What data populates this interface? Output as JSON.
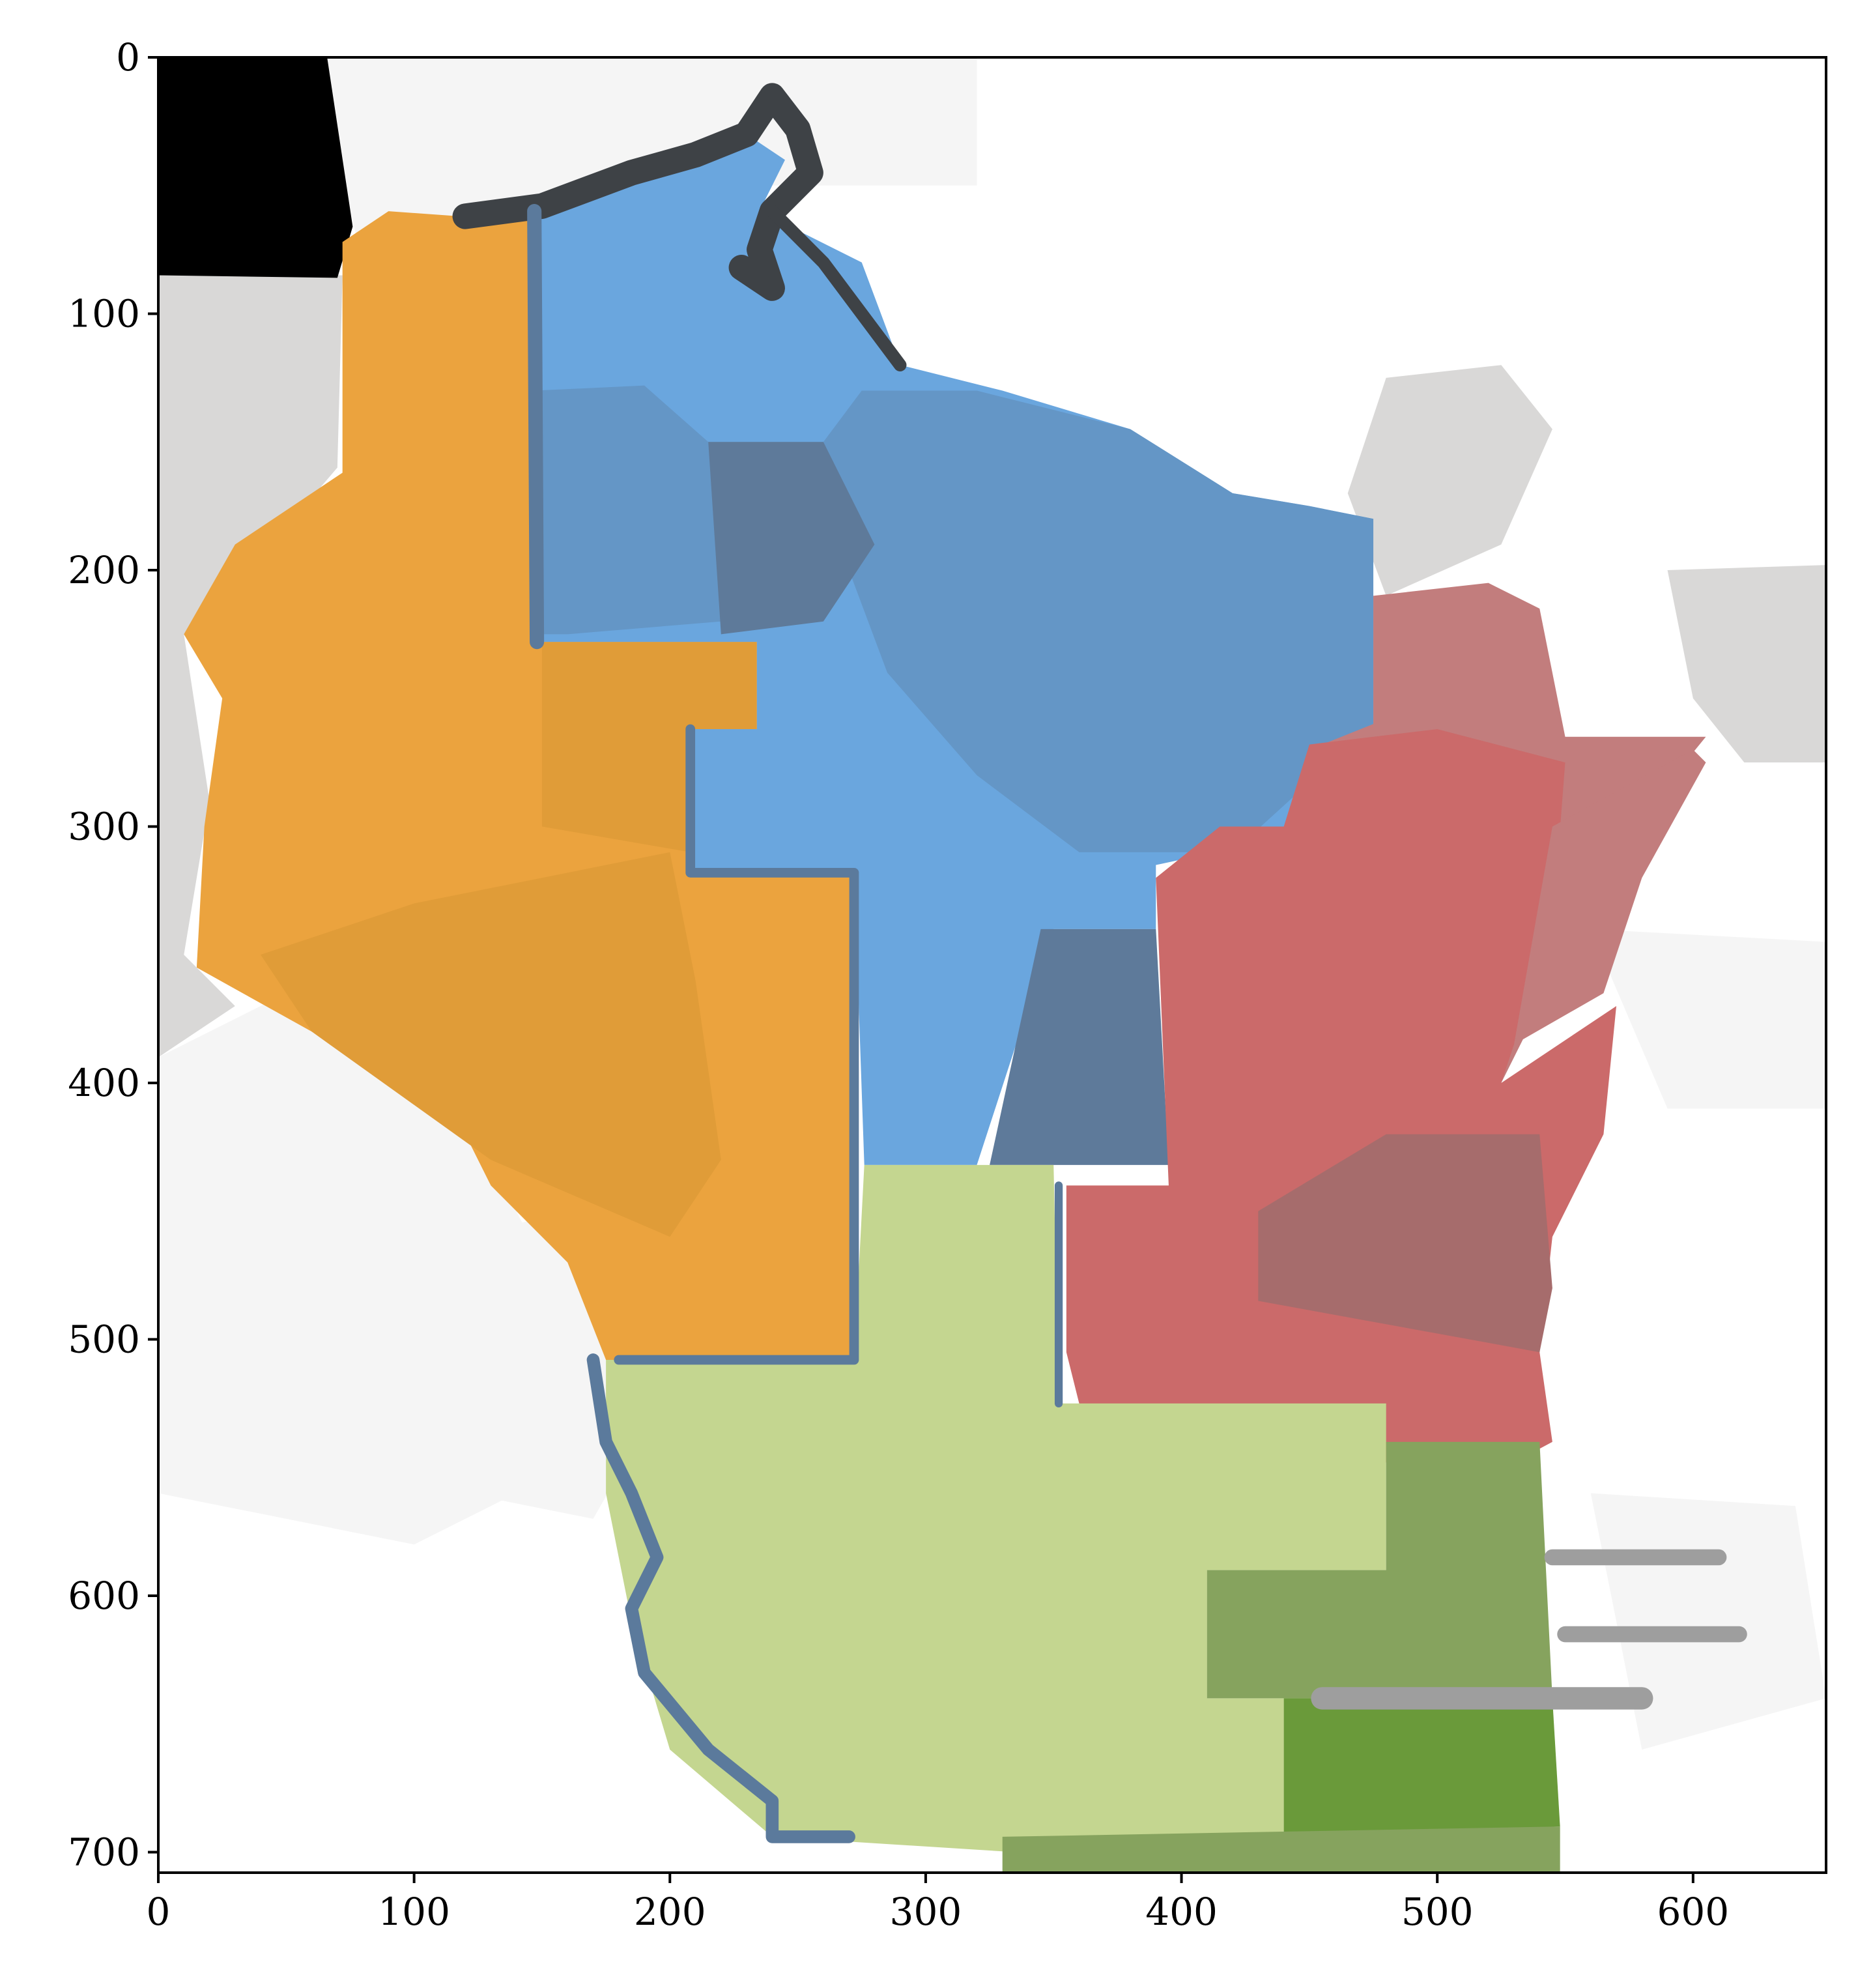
{
  "chart_data": {
    "type": "map",
    "title": "",
    "xlabel": "",
    "ylabel": "",
    "xlim": [
      0,
      652
    ],
    "ylim": [
      708,
      0
    ],
    "y_axis_inverted": true,
    "grid": false,
    "x_ticks": [
      {
        "value": 0,
        "label": "0"
      },
      {
        "value": 100,
        "label": "100"
      },
      {
        "value": 200,
        "label": "200"
      },
      {
        "value": 300,
        "label": "300"
      },
      {
        "value": 400,
        "label": "400"
      },
      {
        "value": 500,
        "label": "500"
      },
      {
        "value": 600,
        "label": "600"
      }
    ],
    "y_ticks": [
      {
        "value": 0,
        "label": "0"
      },
      {
        "value": 100,
        "label": "100"
      },
      {
        "value": 200,
        "label": "200"
      },
      {
        "value": 300,
        "label": "300"
      },
      {
        "value": 400,
        "label": "400"
      },
      {
        "value": 500,
        "label": "500"
      },
      {
        "value": 600,
        "label": "600"
      },
      {
        "value": 700,
        "label": "700"
      }
    ],
    "colors": {
      "orange": "#eba33e",
      "orange_dark": "#e09c38",
      "blue": "#6aa6de",
      "blue_mid": "#6496c6",
      "blue_dark": "#5e7a9a",
      "red": "#cb6a6a",
      "red_dark": "#a66c6c",
      "red_light": "#c27d7d",
      "light_green": "#c4d690",
      "green": "#86a35e",
      "green_dark": "#6a9a3a",
      "river": "#5b7a9c",
      "lake": "#3e4246",
      "gray_neighbor": "#d9d8d7",
      "gray_light": "#f5f5f5",
      "gray_lake": "#9e9e9e",
      "black": "#000000"
    },
    "regions": [
      {
        "color": "gray_light",
        "points": [
          [
            0,
            390
          ],
          [
            60,
            360
          ],
          [
            120,
            410
          ],
          [
            160,
            490
          ],
          [
            200,
            540
          ],
          [
            160,
            550
          ],
          [
            100,
            580
          ],
          [
            0,
            560
          ]
        ]
      },
      {
        "color": "gray_light",
        "points": [
          [
            80,
            470
          ],
          [
            160,
            450
          ],
          [
            210,
            500
          ],
          [
            170,
            570
          ],
          [
            120,
            560
          ]
        ]
      },
      {
        "color": "gray_light",
        "points": [
          [
            60,
            0
          ],
          [
            320,
            0
          ],
          [
            320,
            50
          ],
          [
            230,
            50
          ],
          [
            160,
            70
          ],
          [
            80,
            80
          ]
        ]
      },
      {
        "color": "gray_neighbor",
        "points": [
          [
            0,
            85
          ],
          [
            72,
            85
          ],
          [
            70,
            160
          ],
          [
            40,
            195
          ],
          [
            10,
            225
          ],
          [
            20,
            290
          ],
          [
            10,
            350
          ],
          [
            30,
            370
          ],
          [
            0,
            390
          ]
        ]
      },
      {
        "color": "gray_neighbor",
        "points": [
          [
            480,
            125
          ],
          [
            525,
            120
          ],
          [
            545,
            145
          ],
          [
            525,
            190
          ],
          [
            480,
            210
          ],
          [
            465,
            170
          ]
        ]
      },
      {
        "color": "gray_neighbor",
        "points": [
          [
            590,
            200
          ],
          [
            652,
            198
          ],
          [
            652,
            275
          ],
          [
            620,
            275
          ],
          [
            600,
            250
          ]
        ]
      },
      {
        "color": "gray_light",
        "points": [
          [
            560,
            340
          ],
          [
            652,
            345
          ],
          [
            652,
            410
          ],
          [
            590,
            410
          ]
        ]
      },
      {
        "color": "gray_light",
        "points": [
          [
            560,
            560
          ],
          [
            640,
            565
          ],
          [
            652,
            640
          ],
          [
            580,
            660
          ]
        ]
      },
      {
        "color": "black",
        "points": [
          [
            0,
            0
          ],
          [
            66,
            0
          ],
          [
            76,
            66
          ],
          [
            70,
            86
          ],
          [
            0,
            85
          ]
        ]
      },
      {
        "color": "orange",
        "points": [
          [
            72,
            72
          ],
          [
            90,
            60
          ],
          [
            118,
            62
          ],
          [
            147,
            60
          ],
          [
            147,
            228
          ],
          [
            234,
            228
          ],
          [
            234,
            262
          ],
          [
            208,
            262
          ],
          [
            208,
            318
          ],
          [
            272,
            318
          ],
          [
            272,
            508
          ],
          [
            175,
            508
          ],
          [
            160,
            470
          ],
          [
            130,
            440
          ],
          [
            110,
            400
          ],
          [
            60,
            380
          ],
          [
            15,
            355
          ],
          [
            18,
            300
          ],
          [
            25,
            250
          ],
          [
            10,
            225
          ],
          [
            30,
            190
          ],
          [
            72,
            162
          ]
        ]
      },
      {
        "color": "orange_dark",
        "points": [
          [
            100,
            330
          ],
          [
            200,
            310
          ],
          [
            210,
            360
          ],
          [
            220,
            430
          ],
          [
            200,
            460
          ],
          [
            130,
            430
          ],
          [
            60,
            380
          ],
          [
            40,
            350
          ]
        ]
      },
      {
        "color": "orange_dark",
        "points": [
          [
            150,
            228
          ],
          [
            234,
            228
          ],
          [
            234,
            262
          ],
          [
            208,
            262
          ],
          [
            208,
            310
          ],
          [
            150,
            300
          ]
        ]
      },
      {
        "color": "blue",
        "points": [
          [
            147,
            60
          ],
          [
            200,
            40
          ],
          [
            230,
            30
          ],
          [
            245,
            40
          ],
          [
            235,
            60
          ],
          [
            275,
            80
          ],
          [
            290,
            120
          ],
          [
            330,
            130
          ],
          [
            380,
            145
          ],
          [
            420,
            170
          ],
          [
            450,
            175
          ],
          [
            475,
            180
          ],
          [
            475,
            260
          ],
          [
            460,
            300
          ],
          [
            390,
            315
          ],
          [
            390,
            340
          ],
          [
            350,
            340
          ],
          [
            320,
            432
          ],
          [
            276,
            432
          ],
          [
            272,
            318
          ],
          [
            208,
            318
          ],
          [
            208,
            262
          ],
          [
            234,
            262
          ],
          [
            234,
            228
          ],
          [
            147,
            228
          ]
        ]
      },
      {
        "color": "blue_mid",
        "points": [
          [
            147,
            130
          ],
          [
            190,
            128
          ],
          [
            215,
            150
          ],
          [
            260,
            150
          ],
          [
            275,
            130
          ],
          [
            320,
            130
          ],
          [
            380,
            145
          ],
          [
            420,
            170
          ],
          [
            450,
            175
          ],
          [
            475,
            180
          ],
          [
            475,
            260
          ],
          [
            420,
            310
          ],
          [
            360,
            310
          ],
          [
            320,
            280
          ],
          [
            285,
            240
          ],
          [
            270,
            200
          ],
          [
            220,
            220
          ],
          [
            160,
            225
          ],
          [
            147,
            225
          ]
        ]
      },
      {
        "color": "blue_dark",
        "points": [
          [
            215,
            150
          ],
          [
            260,
            150
          ],
          [
            280,
            190
          ],
          [
            260,
            220
          ],
          [
            220,
            225
          ]
        ]
      },
      {
        "color": "blue_mid",
        "points": [
          [
            300,
            230
          ],
          [
            370,
            230
          ],
          [
            360,
            245
          ],
          [
            300,
            245
          ]
        ]
      },
      {
        "color": "blue_dark",
        "points": [
          [
            345,
            340
          ],
          [
            390,
            340
          ],
          [
            395,
            432
          ],
          [
            325,
            432
          ]
        ]
      },
      {
        "color": "red_light",
        "points": [
          [
            475,
            210
          ],
          [
            520,
            205
          ],
          [
            540,
            215
          ],
          [
            550,
            265
          ],
          [
            605,
            265
          ],
          [
            560,
            320
          ],
          [
            540,
            370
          ],
          [
            525,
            400
          ],
          [
            500,
            400
          ],
          [
            470,
            300
          ],
          [
            450,
            270
          ],
          [
            475,
            260
          ]
        ]
      },
      {
        "color": "red",
        "points": [
          [
            450,
            268
          ],
          [
            500,
            262
          ],
          [
            550,
            275
          ],
          [
            545,
            340
          ],
          [
            525,
            400
          ],
          [
            570,
            370
          ],
          [
            565,
            420
          ],
          [
            545,
            460
          ],
          [
            540,
            505
          ],
          [
            545,
            540
          ],
          [
            530,
            548
          ],
          [
            475,
            548
          ],
          [
            360,
            525
          ],
          [
            355,
            505
          ],
          [
            355,
            440
          ],
          [
            395,
            440
          ],
          [
            390,
            320
          ],
          [
            415,
            300
          ],
          [
            440,
            300
          ]
        ]
      },
      {
        "color": "red_dark",
        "points": [
          [
            430,
            450
          ],
          [
            480,
            420
          ],
          [
            540,
            420
          ],
          [
            545,
            480
          ],
          [
            540,
            505
          ],
          [
            430,
            485
          ]
        ]
      },
      {
        "color": "red_light",
        "points": [
          [
            545,
            300
          ],
          [
            600,
            270
          ],
          [
            605,
            275
          ],
          [
            580,
            320
          ],
          [
            565,
            365
          ],
          [
            530,
            385
          ]
        ]
      },
      {
        "color": "light_green",
        "points": [
          [
            175,
            508
          ],
          [
            272,
            508
          ],
          [
            276,
            432
          ],
          [
            350,
            432
          ],
          [
            352,
            525
          ],
          [
            480,
            525
          ],
          [
            480,
            590
          ],
          [
            410,
            590
          ],
          [
            410,
            640
          ],
          [
            440,
            640
          ],
          [
            440,
            700
          ],
          [
            410,
            700
          ],
          [
            335,
            700
          ],
          [
            240,
            694
          ],
          [
            200,
            660
          ],
          [
            185,
            610
          ],
          [
            175,
            560
          ]
        ]
      },
      {
        "color": "light_green",
        "points": [
          [
            260,
            560
          ],
          [
            380,
            540
          ],
          [
            410,
            590
          ],
          [
            410,
            640
          ],
          [
            350,
            650
          ],
          [
            260,
            640
          ]
        ]
      },
      {
        "color": "green",
        "points": [
          [
            480,
            540
          ],
          [
            540,
            540
          ],
          [
            545,
            640
          ],
          [
            440,
            640
          ],
          [
            410,
            640
          ],
          [
            410,
            590
          ],
          [
            480,
            590
          ]
        ]
      },
      {
        "color": "green_dark",
        "points": [
          [
            440,
            640
          ],
          [
            545,
            640
          ],
          [
            548,
            690
          ],
          [
            440,
            694
          ]
        ]
      },
      {
        "color": "green",
        "points": [
          [
            330,
            694
          ],
          [
            548,
            690
          ],
          [
            548,
            708
          ],
          [
            330,
            708
          ]
        ]
      }
    ],
    "waters": [
      {
        "color": "lake",
        "width": 16,
        "points": [
          [
            120,
            62
          ],
          [
            150,
            58
          ],
          [
            185,
            45
          ],
          [
            210,
            38
          ],
          [
            230,
            30
          ],
          [
            240,
            15
          ],
          [
            250,
            28
          ],
          [
            255,
            45
          ],
          [
            240,
            60
          ],
          [
            235,
            75
          ],
          [
            240,
            90
          ],
          [
            228,
            82
          ]
        ]
      },
      {
        "color": "lake",
        "width": 8,
        "points": [
          [
            240,
            60
          ],
          [
            260,
            80
          ],
          [
            290,
            120
          ]
        ]
      },
      {
        "color": "river",
        "width": 9,
        "points": [
          [
            147,
            60
          ],
          [
            148,
            228
          ]
        ]
      },
      {
        "color": "river",
        "width": 8,
        "points": [
          [
            170,
            508
          ],
          [
            175,
            540
          ],
          [
            185,
            560
          ],
          [
            195,
            585
          ],
          [
            185,
            605
          ],
          [
            190,
            630
          ],
          [
            215,
            660
          ],
          [
            240,
            680
          ],
          [
            240,
            694
          ],
          [
            270,
            694
          ]
        ]
      },
      {
        "color": "river",
        "width": 6,
        "points": [
          [
            208,
            262
          ],
          [
            208,
            318
          ],
          [
            272,
            318
          ],
          [
            272,
            508
          ],
          [
            180,
            508
          ]
        ]
      },
      {
        "color": "river",
        "width": 5,
        "points": [
          [
            352,
            525
          ],
          [
            352,
            440
          ]
        ]
      },
      {
        "color": "gray_lake",
        "width": 10,
        "points": [
          [
            545,
            585
          ],
          [
            610,
            585
          ]
        ]
      },
      {
        "color": "gray_lake",
        "width": 10,
        "points": [
          [
            550,
            615
          ],
          [
            618,
            615
          ]
        ]
      },
      {
        "color": "gray_lake",
        "width": 14,
        "points": [
          [
            455,
            640
          ],
          [
            580,
            640
          ]
        ]
      }
    ]
  }
}
